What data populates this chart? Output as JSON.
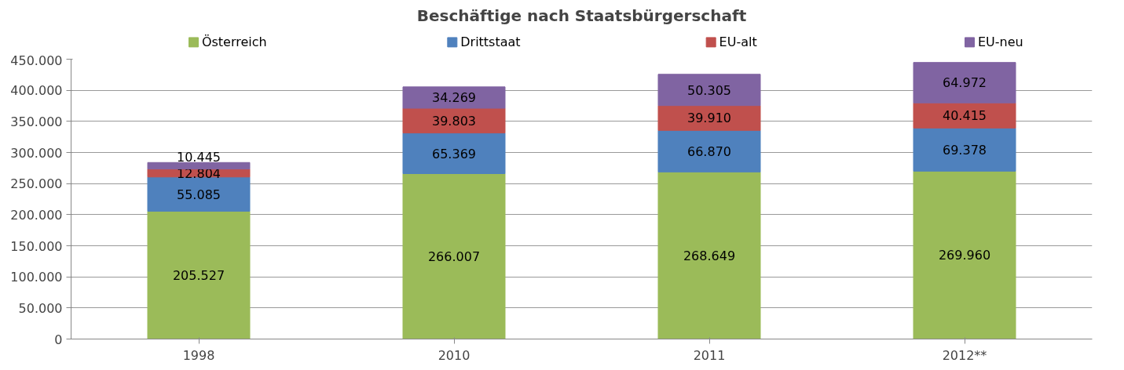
{
  "chart_data": {
    "type": "bar",
    "title": "Beschäftige nach Staatsbürgerschaft",
    "stacked": true,
    "categories": [
      "1998",
      "2010",
      "2011",
      "2012**"
    ],
    "series": [
      {
        "name": "Österreich",
        "color": "#9bbb59",
        "values": [
          205527,
          266007,
          268649,
          269960
        ],
        "value_labels": [
          "205.527",
          "266.007",
          "268.649",
          "269.960"
        ]
      },
      {
        "name": "Drittstaat",
        "color": "#4f81bd",
        "values": [
          55085,
          65369,
          66870,
          69378
        ],
        "value_labels": [
          "55.085",
          "65.369",
          "66.870",
          "69.378"
        ]
      },
      {
        "name": "EU-alt",
        "color": "#c0504d",
        "values": [
          12804,
          39803,
          39910,
          40415
        ],
        "value_labels": [
          "12.804",
          "39.803",
          "39.910",
          "40.415"
        ]
      },
      {
        "name": "EU-neu",
        "color": "#8064a2",
        "values": [
          10445,
          34269,
          50305,
          64972
        ],
        "value_labels": [
          "10.445",
          "34.269",
          "50.305",
          "64.972"
        ]
      }
    ],
    "ylim": [
      0,
      450000
    ],
    "yticks": [
      0,
      {
        "value": 50000,
        "label": "50.000"
      },
      {
        "value": 100000,
        "label": "100.000"
      },
      {
        "value": 150000,
        "label": "150.000"
      },
      {
        "value": 200000,
        "label": "200.000"
      },
      {
        "value": 250000,
        "label": "250.000"
      },
      {
        "value": 300000,
        "label": "300.000"
      },
      {
        "value": 350000,
        "label": "350.000"
      },
      {
        "value": 400000,
        "label": "400.000"
      },
      {
        "value": 450000,
        "label": "450.000"
      }
    ],
    "grid": "y",
    "legend": "top"
  }
}
